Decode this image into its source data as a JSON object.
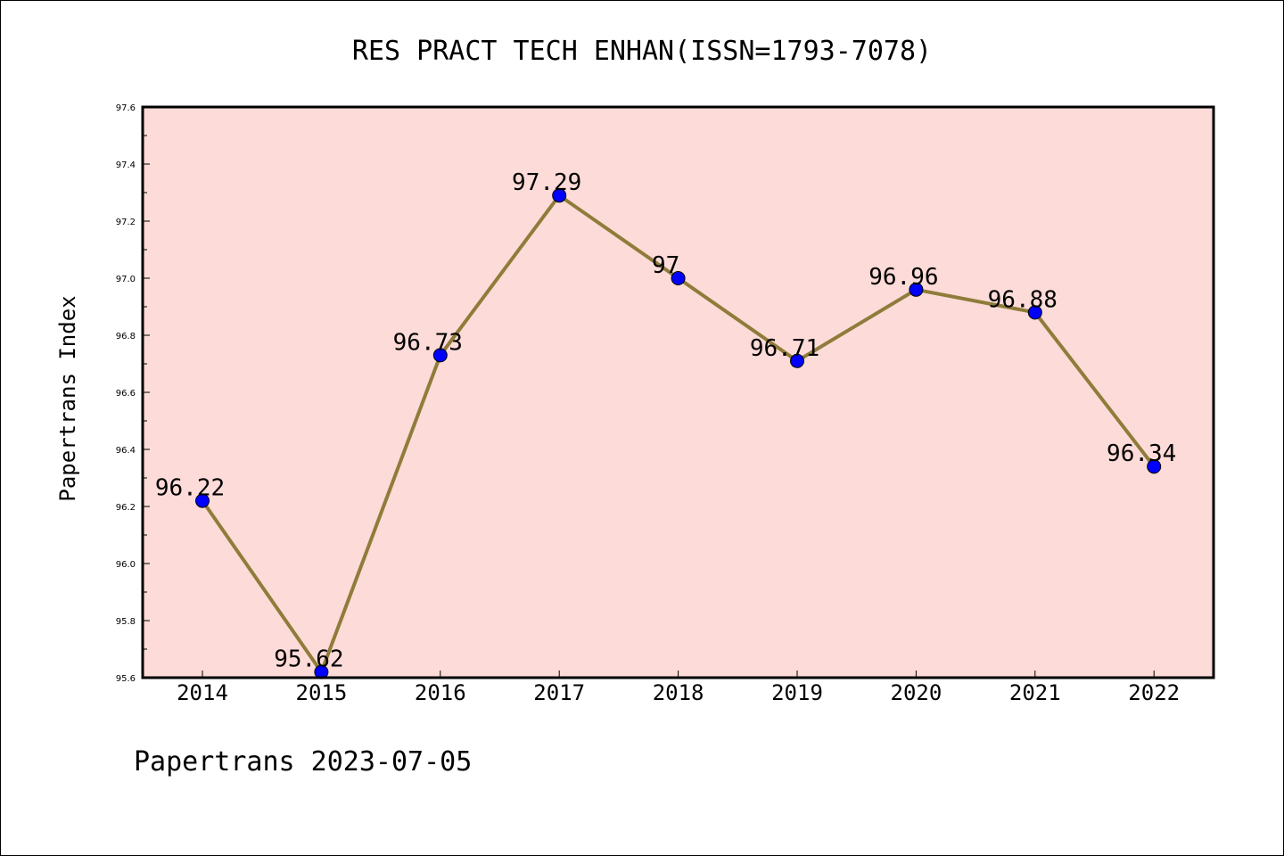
{
  "chart_data": {
    "type": "line",
    "title": "RES PRACT TECH ENHAN(ISSN=1793-7078)",
    "ylabel": "Papertrans Index",
    "xlabel": "",
    "footer": "Papertrans 2023-07-05",
    "categories": [
      "2014",
      "2015",
      "2016",
      "2017",
      "2018",
      "2019",
      "2020",
      "2021",
      "2022"
    ],
    "series": [
      {
        "values": [
          96.22,
          95.62,
          96.73,
          97.29,
          97.0,
          96.71,
          96.96,
          96.88,
          96.34
        ],
        "data_labels": [
          "96.22",
          "95.62",
          "96.73",
          "97.29",
          "97",
          "96.71",
          "96.96",
          "96.88",
          "96.34"
        ]
      }
    ],
    "ylim": [
      95.6,
      97.6
    ],
    "yticks": [
      "95.6",
      "95.8",
      "96.0",
      "96.2",
      "96.4",
      "96.6",
      "96.8",
      "97.0",
      "97.2",
      "97.4",
      "97.6"
    ],
    "grid": false,
    "colors": {
      "plot_background": "#fddbd8",
      "line": "#8f7c3a",
      "marker": "#0000ff",
      "axes": "#000000"
    }
  }
}
